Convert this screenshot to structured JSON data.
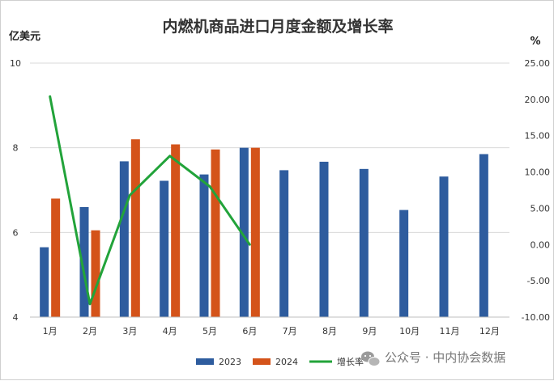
{
  "chart_data": {
    "type": "bar",
    "title": "内燃机商品进口月度金额及增长率",
    "left_axis_unit": "亿美元",
    "right_axis_unit": "%",
    "categories": [
      "1月",
      "2月",
      "3月",
      "4月",
      "5月",
      "6月",
      "7月",
      "8月",
      "9月",
      "10月",
      "11月",
      "12月"
    ],
    "series": [
      {
        "name": "2023",
        "kind": "bar",
        "axis": "left",
        "color": "#2e5c9e",
        "values": [
          5.65,
          6.6,
          7.68,
          7.22,
          7.37,
          8.0,
          7.47,
          7.67,
          7.5,
          6.53,
          7.32,
          7.85
        ]
      },
      {
        "name": "2024",
        "kind": "bar",
        "axis": "left",
        "color": "#d4531a",
        "values": [
          6.8,
          6.05,
          8.2,
          8.08,
          7.96,
          8.0,
          null,
          null,
          null,
          null,
          null,
          null
        ]
      },
      {
        "name": "增长率",
        "kind": "line",
        "axis": "right",
        "color": "#22a33a",
        "values": [
          20.4,
          -8.2,
          6.8,
          12.2,
          8.0,
          0.0,
          null,
          null,
          null,
          null,
          null,
          null
        ]
      }
    ],
    "y_left": {
      "min": 4,
      "max": 10,
      "ticks": [
        "4",
        "6",
        "8",
        "10"
      ]
    },
    "y_right": {
      "min": -10,
      "max": 25,
      "ticks": [
        "-10.00",
        "-5.00",
        "0.00",
        "5.00",
        "10.00",
        "15.00",
        "20.00",
        "25.00"
      ]
    },
    "gridlines": "horizontal",
    "legend_position": "bottom"
  },
  "watermark": {
    "text": "公众号 · 中内协会数据",
    "icon": "wechat-icon"
  }
}
